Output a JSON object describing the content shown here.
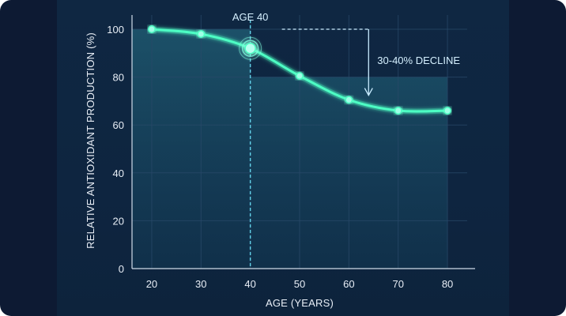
{
  "chart_data": {
    "type": "line",
    "title": "",
    "xlabel": "AGE (YEARS)",
    "ylabel": "RELATIVE ANTIOXIDANT PRODUCTION (%)",
    "x_ticks": [
      20,
      30,
      40,
      50,
      60,
      70,
      80
    ],
    "y_ticks": [
      0,
      20,
      40,
      60,
      80,
      100
    ],
    "xlim": [
      16,
      84
    ],
    "ylim": [
      0,
      100
    ],
    "grid": true,
    "series": [
      {
        "x": [
          20,
          30,
          40,
          50,
          60,
          70,
          80
        ],
        "y": [
          100,
          98,
          92,
          80.5,
          70.5,
          66,
          66
        ]
      }
    ],
    "highlight_point": {
      "x": 40,
      "y": 92
    },
    "annotations": {
      "age_marker": {
        "label": "AGE 40",
        "x": 40
      },
      "decline": {
        "label": "30-40% DECLINE",
        "from_y": 100,
        "to_y": 80,
        "x_start": 40,
        "x_end": 80
      }
    },
    "colors": {
      "line": "#4dffc4",
      "marker_line": "#62d3ea",
      "area": "#3fb5c4",
      "grid": "#2a4a6a"
    }
  }
}
